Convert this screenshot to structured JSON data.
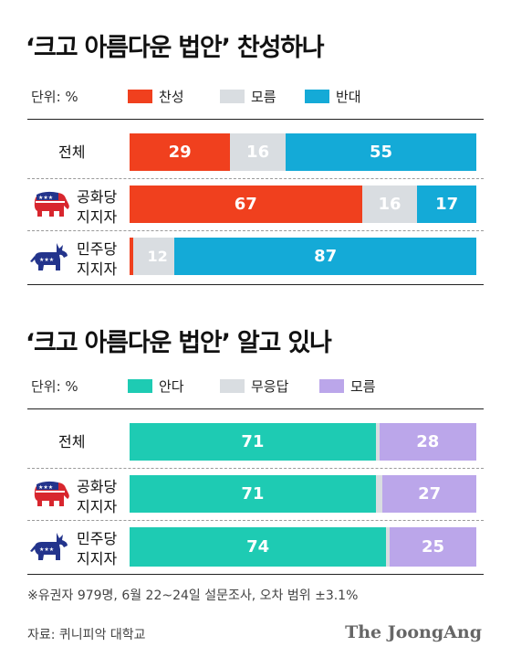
{
  "colors": {
    "support": "#f0401e",
    "unknown_gray": "#d9dde1",
    "oppose": "#14aad7",
    "know": "#1ecbb3",
    "no_answer": "#d9dde1",
    "dont_know": "#bba6ea",
    "gop_red": "#d8262e",
    "gop_blue": "#23348c",
    "dem_blue": "#23348c",
    "dem_red": "#d8262e"
  },
  "chart_data": [
    {
      "type": "bar",
      "orientation": "horizontal-stacked",
      "title": "‘크고 아름다운 법안’ 찬성하나",
      "unit_label": "단위: %",
      "categories": [
        "전체",
        "공화당 지지자",
        "민주당 지지자"
      ],
      "series": [
        {
          "name": "찬성",
          "color": "#f0401e",
          "values": [
            29,
            67,
            1
          ]
        },
        {
          "name": "모름",
          "color": "#d9dde1",
          "values": [
            16,
            16,
            12
          ]
        },
        {
          "name": "반대",
          "color": "#14aad7",
          "values": [
            55,
            17,
            87
          ]
        }
      ],
      "xlim": [
        0,
        100
      ],
      "legend": "top"
    },
    {
      "type": "bar",
      "orientation": "horizontal-stacked",
      "title": "‘크고 아름다운 법안’ 알고 있나",
      "unit_label": "단위: %",
      "categories": [
        "전체",
        "공화당 지지자",
        "민주당 지지자"
      ],
      "series": [
        {
          "name": "안다",
          "color": "#1ecbb3",
          "values": [
            71,
            71,
            74
          ]
        },
        {
          "name": "무응답",
          "color": "#d9dde1",
          "values": [
            1,
            2,
            1
          ]
        },
        {
          "name": "모름",
          "color": "#bba6ea",
          "values": [
            28,
            27,
            25
          ]
        }
      ],
      "xlim": [
        0,
        100
      ],
      "legend": "top"
    }
  ],
  "rows": {
    "total": "전체",
    "gop_line1": "공화당",
    "gop_line2": "지지자",
    "dem_line1": "민주당",
    "dem_line2": "지지자"
  },
  "icons": {
    "gop": "republican-elephant-icon",
    "dem": "democratic-donkey-icon"
  },
  "footnote": "※유권자 979명, 6월 22~24일 설문조사, 오차 범위 ±3.1%",
  "source": "자료: 퀴니피악 대학교",
  "brand": "The JoongAng"
}
